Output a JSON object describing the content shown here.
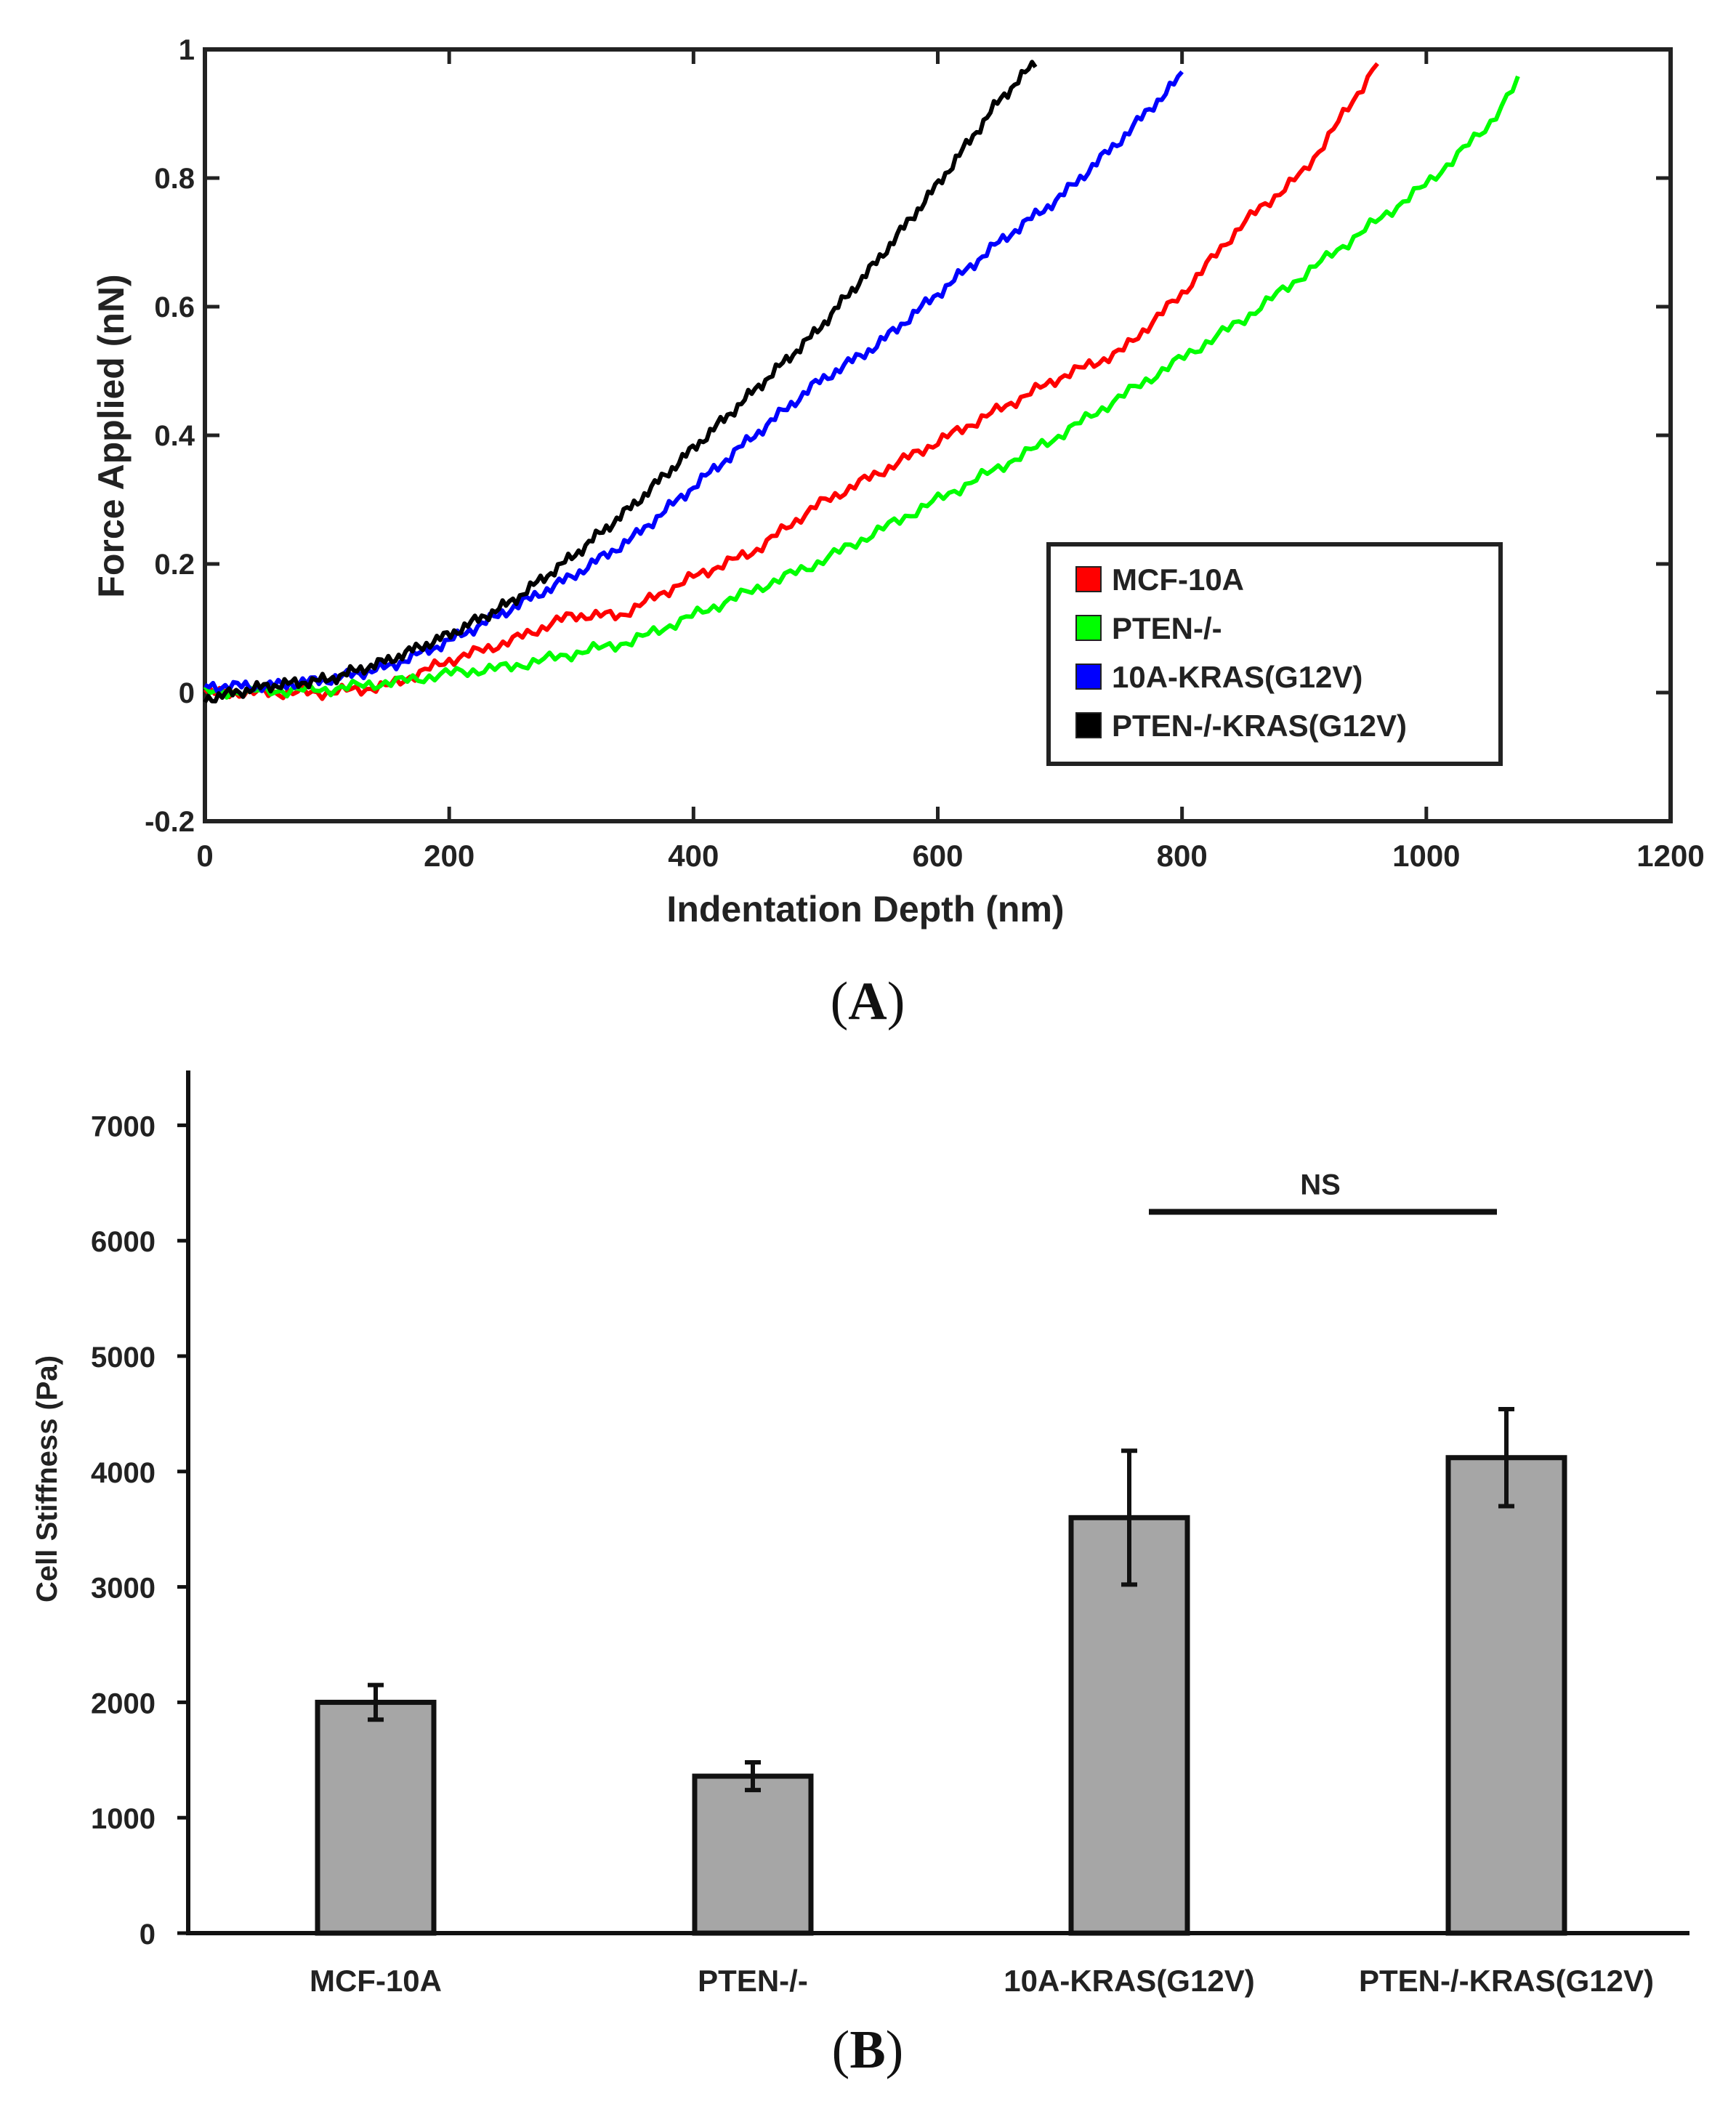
{
  "chart_data": [
    {
      "panel": "(A)",
      "panel_label_parts": {
        "open": "(",
        "letter": "A",
        "close": ")"
      },
      "type": "line",
      "title": "",
      "xlabel": "Indentation Depth (nm)",
      "ylabel": "Force Applied (nN)",
      "xlim": [
        0,
        1200
      ],
      "ylim": [
        -0.2,
        1
      ],
      "xticks": [
        0,
        200,
        400,
        600,
        800,
        1000,
        1200
      ],
      "xtick_labels": [
        "0",
        "200",
        "400",
        "600",
        "800",
        "1000",
        "1200"
      ],
      "yticks": [
        -0.2,
        0,
        0.2,
        0.4,
        0.6,
        0.8,
        1
      ],
      "ytick_labels": [
        "-0.2",
        "0",
        "0.2",
        "0.4",
        "0.6",
        "0.8",
        "1"
      ],
      "grid": false,
      "legend_position": "lower-right",
      "series": [
        {
          "name": "MCF-10A",
          "color": "#ff0000",
          "x": [
            0,
            100,
            150,
            200,
            250,
            300,
            340,
            400,
            450,
            500,
            550,
            600,
            650,
            700,
            750,
            800,
            850,
            900,
            940,
            960
          ],
          "y": [
            0,
            0,
            0.01,
            0.05,
            0.08,
            0.12,
            0.12,
            0.18,
            0.22,
            0.29,
            0.34,
            0.39,
            0.44,
            0.49,
            0.53,
            0.62,
            0.73,
            0.81,
            0.92,
            0.98
          ]
        },
        {
          "name": "PTEN-/-",
          "color": "#00ff00",
          "x": [
            0,
            100,
            170,
            200,
            250,
            300,
            350,
            400,
            450,
            500,
            550,
            600,
            650,
            700,
            750,
            800,
            850,
            900,
            950,
            1000,
            1050,
            1075
          ],
          "y": [
            0,
            0.005,
            0.02,
            0.03,
            0.04,
            0.06,
            0.08,
            0.12,
            0.16,
            0.2,
            0.25,
            0.3,
            0.35,
            0.4,
            0.46,
            0.52,
            0.58,
            0.65,
            0.72,
            0.79,
            0.88,
            0.95
          ]
        },
        {
          "name": "10A-KRAS(G12V)",
          "color": "#0000ff",
          "x": [
            0,
            50,
            100,
            150,
            200,
            250,
            300,
            350,
            400,
            450,
            500,
            550,
            600,
            650,
            700,
            750,
            800
          ],
          "y": [
            0.01,
            0.01,
            0.02,
            0.04,
            0.08,
            0.13,
            0.18,
            0.24,
            0.32,
            0.4,
            0.48,
            0.54,
            0.62,
            0.7,
            0.77,
            0.86,
            0.96
          ]
        },
        {
          "name": "PTEN-/-KRAS(G12V)",
          "color": "#000000",
          "x": [
            0,
            50,
            100,
            150,
            200,
            250,
            300,
            350,
            400,
            450,
            500,
            550,
            600,
            650,
            680
          ],
          "y": [
            -0.01,
            0.01,
            0.02,
            0.05,
            0.09,
            0.14,
            0.21,
            0.29,
            0.38,
            0.47,
            0.56,
            0.67,
            0.79,
            0.92,
            0.98
          ]
        }
      ]
    },
    {
      "panel": "(B)",
      "panel_label_parts": {
        "open": "(",
        "letter": "B",
        "close": ")"
      },
      "type": "bar",
      "title": "",
      "xlabel": "",
      "ylabel": "Cell Stiffness (Pa)",
      "ylim": [
        0,
        7500
      ],
      "yticks": [
        0,
        1000,
        2000,
        3000,
        4000,
        5000,
        6000,
        7000
      ],
      "ytick_labels": [
        "0",
        "1000",
        "2000",
        "3000",
        "4000",
        "5000",
        "6000",
        "7000"
      ],
      "categories": [
        "MCF-10A",
        "PTEN-/-",
        "10A-KRAS(G12V)",
        "PTEN-/-KRAS(G12V)"
      ],
      "values": [
        2000,
        1360,
        3600,
        4120
      ],
      "error": [
        150,
        120,
        580,
        420
      ],
      "bar_color": "#a6a6a6",
      "grid": false,
      "annotations": [
        {
          "text": "NS",
          "from_category": "10A-KRAS(G12V)",
          "to_category": "PTEN-/-KRAS(G12V)",
          "y": 6250
        }
      ]
    }
  ]
}
